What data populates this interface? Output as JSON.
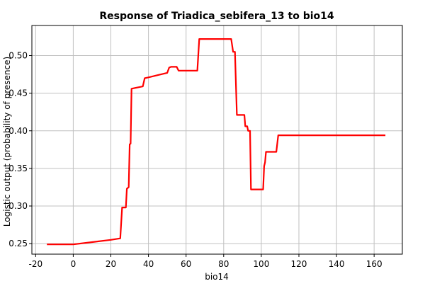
{
  "chart_data": {
    "type": "line",
    "title": "Response of Triadica_sebifera_13 to bio14",
    "xlabel": "bio14",
    "ylabel": "Logistic output (probability of presence)",
    "xlim": [
      -22,
      175
    ],
    "ylim": [
      0.236,
      0.54
    ],
    "x_ticks": [
      -20,
      0,
      20,
      40,
      60,
      80,
      100,
      120,
      140,
      160
    ],
    "y_ticks": [
      0.25,
      0.3,
      0.35,
      0.4,
      0.45,
      0.5
    ],
    "x_tick_labels": [
      "-20",
      "0",
      "20",
      "40",
      "60",
      "80",
      "100",
      "120",
      "140",
      "160"
    ],
    "y_tick_labels": [
      "0.25",
      "0.30",
      "0.35",
      "0.40",
      "0.45",
      "0.50"
    ],
    "grid": true,
    "series": [
      {
        "color": "#ff0000",
        "points": [
          [
            -14,
            0.249
          ],
          [
            0,
            0.249
          ],
          [
            10,
            0.252
          ],
          [
            20,
            0.255
          ],
          [
            25,
            0.257
          ],
          [
            26,
            0.298
          ],
          [
            28,
            0.298
          ],
          [
            28.5,
            0.323
          ],
          [
            29.5,
            0.325
          ],
          [
            30,
            0.382
          ],
          [
            30.5,
            0.383
          ],
          [
            31,
            0.456
          ],
          [
            33,
            0.457
          ],
          [
            37,
            0.459
          ],
          [
            38,
            0.47
          ],
          [
            40,
            0.471
          ],
          [
            45,
            0.474
          ],
          [
            50,
            0.477
          ],
          [
            51,
            0.484
          ],
          [
            52,
            0.485
          ],
          [
            55,
            0.485
          ],
          [
            56,
            0.48
          ],
          [
            60,
            0.48
          ],
          [
            66,
            0.48
          ],
          [
            67,
            0.522
          ],
          [
            70,
            0.522
          ],
          [
            80,
            0.522
          ],
          [
            84,
            0.522
          ],
          [
            85,
            0.505
          ],
          [
            86,
            0.505
          ],
          [
            87,
            0.421
          ],
          [
            88,
            0.421
          ],
          [
            91,
            0.421
          ],
          [
            91.5,
            0.406
          ],
          [
            92.5,
            0.406
          ],
          [
            93,
            0.4
          ],
          [
            94,
            0.4
          ],
          [
            94.5,
            0.322
          ],
          [
            97,
            0.322
          ],
          [
            101,
            0.322
          ],
          [
            101.5,
            0.353
          ],
          [
            102,
            0.358
          ],
          [
            102.5,
            0.372
          ],
          [
            104,
            0.372
          ],
          [
            108,
            0.372
          ],
          [
            109,
            0.394
          ],
          [
            120,
            0.394
          ],
          [
            140,
            0.394
          ],
          [
            166,
            0.394
          ]
        ]
      }
    ]
  }
}
